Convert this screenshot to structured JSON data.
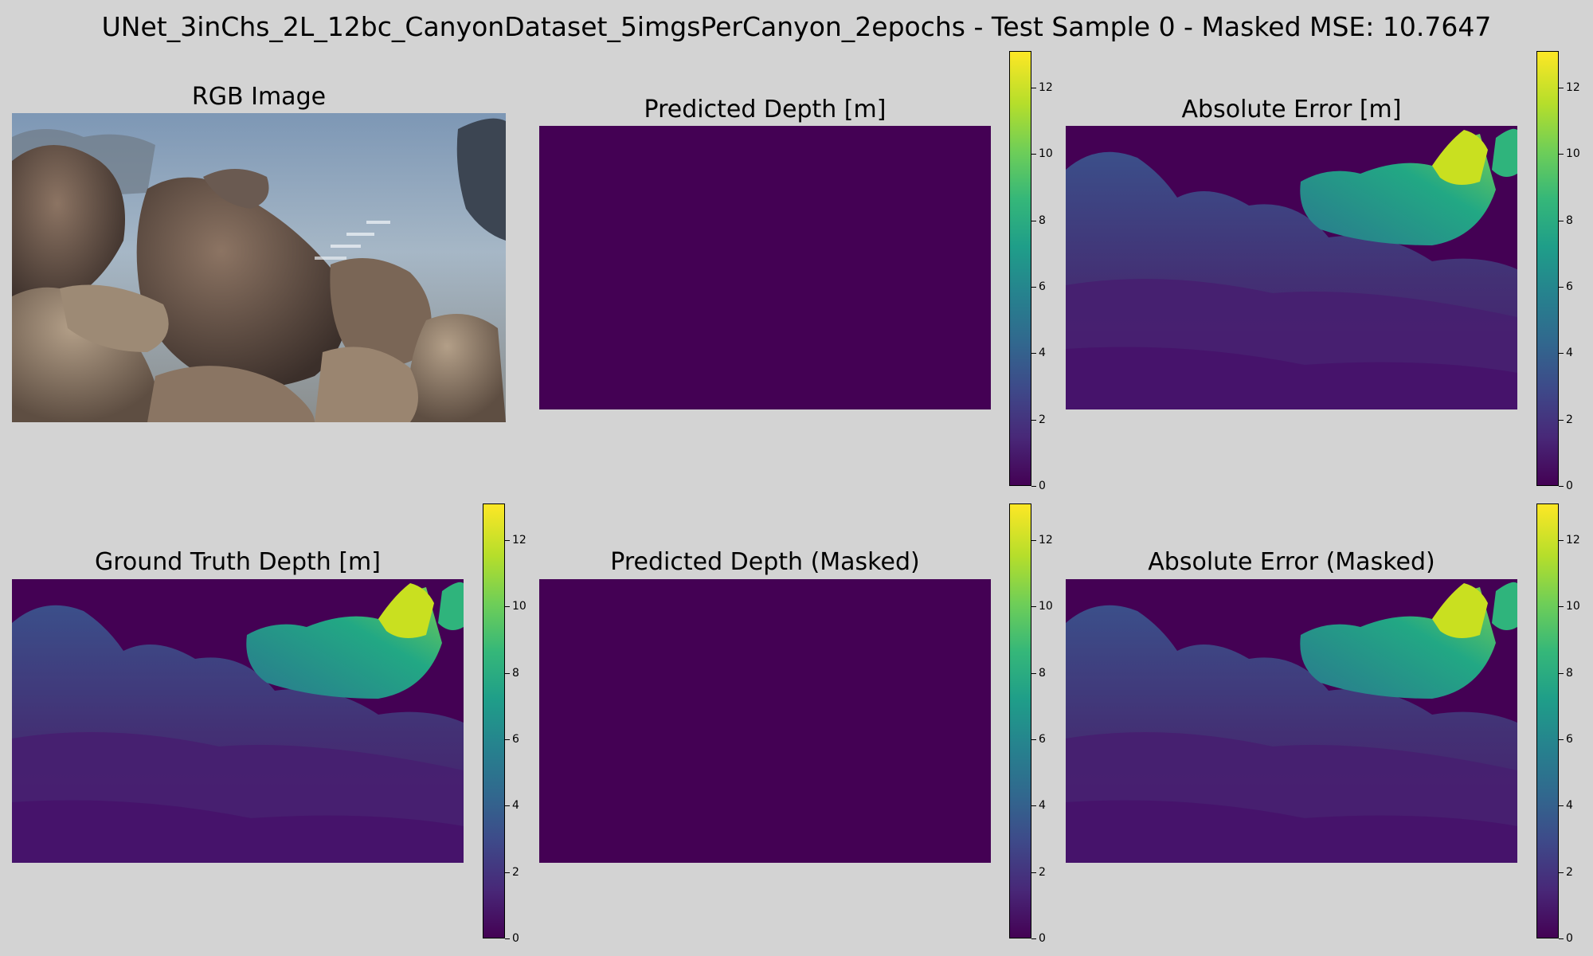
{
  "figure": {
    "suptitle": "UNet_3inChs_2L_12bc_CanyonDataset_5imgsPerCanyon_2epochs - Test Sample 0 - Masked MSE: 10.7647"
  },
  "panels": {
    "rgb": {
      "title": "RGB Image"
    },
    "pred": {
      "title": "Predicted Depth [m]"
    },
    "err": {
      "title": "Absolute Error [m]"
    },
    "gt": {
      "title": "Ground Truth Depth [m]"
    },
    "pred_masked": {
      "title": "Predicted Depth (Masked)"
    },
    "err_masked": {
      "title": "Absolute Error (Masked)"
    }
  },
  "colors": {
    "background": "#d3d3d3",
    "viridis_min": "#440154",
    "viridis_max": "#fde725"
  },
  "chart_data": [
    {
      "type": "heatmap",
      "title": "Predicted Depth [m]",
      "colormap": "viridis",
      "range": [
        0,
        13.1
      ],
      "colorbar_ticks": [
        "0",
        "2",
        "4",
        "6",
        "8",
        "10",
        "12"
      ],
      "values_constant": 0
    },
    {
      "type": "heatmap",
      "title": "Absolute Error [m]",
      "colormap": "viridis",
      "range": [
        0,
        13.1
      ],
      "colorbar_ticks": [
        "0",
        "2",
        "4",
        "6",
        "8",
        "10",
        "12"
      ]
    },
    {
      "type": "heatmap",
      "title": "Ground Truth Depth [m]",
      "colormap": "viridis",
      "range": [
        0,
        13.1
      ],
      "colorbar_ticks": [
        "0",
        "2",
        "4",
        "6",
        "8",
        "10",
        "12"
      ]
    },
    {
      "type": "heatmap",
      "title": "Predicted Depth (Masked)",
      "colormap": "viridis",
      "range": [
        0,
        13.1
      ],
      "colorbar_ticks": [
        "0",
        "2",
        "4",
        "6",
        "8",
        "10",
        "12"
      ],
      "values_constant": 0
    },
    {
      "type": "heatmap",
      "title": "Absolute Error (Masked)",
      "colormap": "viridis",
      "range": [
        0,
        13.1
      ],
      "colorbar_ticks": [
        "0",
        "2",
        "4",
        "6",
        "8",
        "10",
        "12"
      ]
    }
  ]
}
